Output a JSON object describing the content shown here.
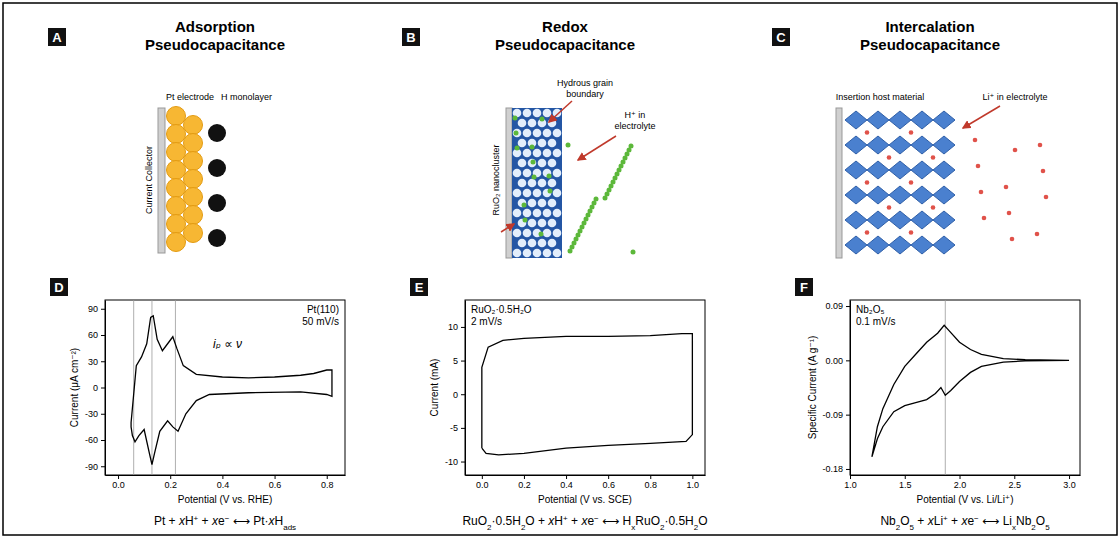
{
  "diagrams": [
    {
      "panel": "A",
      "title": "Adsorption Pseudocapacitance",
      "labels": {
        "collector": "Current Collector",
        "electrode": "Pt electrode",
        "adsorbate": "H monolayer"
      }
    },
    {
      "panel": "B",
      "title": "Redox Pseudocapacitance",
      "labels": {
        "cluster": "RuO₂ nanocluster",
        "boundary": "Hydrous grain boundary",
        "ion": "H⁺ in electrolyte"
      }
    },
    {
      "panel": "C",
      "title": "Intercalation Pseudocapacitance",
      "labels": {
        "host": "Insertion host material",
        "ion": "Li⁺ in electrolyte"
      }
    }
  ],
  "chart_data": [
    {
      "panel": "D",
      "type": "line",
      "color": "#000000",
      "annotations": [
        "Pt(110)",
        "50 mV/s"
      ],
      "formula": "iₚ ∝ ν",
      "xlabel": "Potential (V vs. RHE)",
      "ylabel": "Current (μA cm⁻²)",
      "x": [
        0.05,
        0.07,
        0.09,
        0.11,
        0.125,
        0.135,
        0.15,
        0.17,
        0.19,
        0.21,
        0.225,
        0.25,
        0.3,
        0.4,
        0.5,
        0.6,
        0.7,
        0.75,
        0.8,
        0.82,
        0.82,
        0.8,
        0.7,
        0.5,
        0.35,
        0.3,
        0.26,
        0.23,
        0.21,
        0.19,
        0.16,
        0.14,
        0.13,
        0.12,
        0.1,
        0.08,
        0.065,
        0.055,
        0.05,
        0.05
      ],
      "values": [
        -40,
        25,
        35,
        50,
        80,
        82,
        55,
        42,
        50,
        58,
        45,
        25,
        15,
        12,
        11,
        12,
        14,
        16,
        20,
        20,
        -10,
        -8,
        -5,
        -6,
        -8,
        -15,
        -30,
        -50,
        -45,
        -38,
        -50,
        -75,
        -88,
        -75,
        -48,
        -55,
        -62,
        -55,
        -45,
        -40
      ],
      "vlines": [
        0.06,
        0.13,
        0.22
      ],
      "xlim": [
        -0.05,
        0.87
      ],
      "ylim": [
        -100,
        100
      ],
      "xticks": [
        {
          "value": 0,
          "label": "0.0"
        },
        0.2,
        0.4,
        0.6,
        0.8
      ],
      "yticks": [
        -90,
        -60,
        -30,
        0,
        30,
        60,
        90
      ],
      "equation": [
        {
          "t": "Pt + "
        },
        {
          "i": "x"
        },
        {
          "t": "H"
        },
        {
          "sup": "+"
        },
        {
          "t": " + "
        },
        {
          "i": "x"
        },
        {
          "t": "e"
        },
        {
          "sup": "−"
        },
        {
          "t": " ⟷ Pt·"
        },
        {
          "i": "x"
        },
        {
          "t": "H"
        },
        {
          "sub": "ads"
        }
      ]
    },
    {
      "panel": "E",
      "type": "line",
      "color": "#000000",
      "annotations": [
        "RuO₂·0.5H₂O",
        "2 mV/s"
      ],
      "xlabel": "Potential (V vs. SCE)",
      "ylabel": "Current (mA)",
      "x": [
        0.0,
        0.0,
        0.03,
        0.1,
        0.2,
        0.4,
        0.6,
        0.8,
        0.95,
        1.0,
        1.0,
        0.97,
        0.8,
        0.6,
        0.4,
        0.2,
        0.08,
        0.02,
        0.0
      ],
      "values": [
        -8,
        4,
        7,
        8,
        8.3,
        8.6,
        8.6,
        8.7,
        9,
        9,
        -6,
        -7,
        -7.3,
        -7.6,
        -8,
        -8.8,
        -9,
        -8.8,
        -8
      ],
      "xlim": [
        -0.08,
        1.06
      ],
      "ylim": [
        -12,
        14
      ],
      "xticks": [
        {
          "value": 0,
          "label": "0.0"
        },
        0.2,
        0.4,
        0.6,
        0.8,
        {
          "value": 1,
          "label": "1.0"
        }
      ],
      "yticks": [
        -10,
        -5,
        0,
        5,
        10
      ],
      "equation": [
        {
          "t": "RuO"
        },
        {
          "sub": "2"
        },
        {
          "t": "·0.5H"
        },
        {
          "sub": "2"
        },
        {
          "t": "O + "
        },
        {
          "i": "x"
        },
        {
          "t": "H"
        },
        {
          "sup": "+"
        },
        {
          "t": " + "
        },
        {
          "i": "x"
        },
        {
          "t": "e"
        },
        {
          "sup": "−"
        },
        {
          "t": " ⟷ H"
        },
        {
          "sub": "x"
        },
        {
          "t": "RuO"
        },
        {
          "sub": "2"
        },
        {
          "t": "·0.5H"
        },
        {
          "sub": "2"
        },
        {
          "t": "O"
        }
      ]
    },
    {
      "panel": "F",
      "type": "line",
      "color": "#000000",
      "annotations": [
        "Nb₂O₅",
        "0.1 mV/s"
      ],
      "xlabel": "Potential (V vs. Li/Li⁺)",
      "ylabel": "Specific Current (A g⁻¹)",
      "x": [
        1.2,
        1.25,
        1.3,
        1.4,
        1.5,
        1.6,
        1.7,
        1.8,
        1.86,
        1.9,
        2.0,
        2.1,
        2.2,
        2.4,
        2.6,
        3.0,
        3.0,
        2.6,
        2.4,
        2.2,
        2.1,
        2.0,
        1.92,
        1.87,
        1.83,
        1.78,
        1.7,
        1.6,
        1.5,
        1.4,
        1.3,
        1.25,
        1.2
      ],
      "values": [
        -0.16,
        -0.11,
        -0.08,
        -0.04,
        -0.01,
        0.01,
        0.03,
        0.045,
        0.058,
        0.05,
        0.03,
        0.018,
        0.01,
        0.003,
        0.001,
        0.0,
        0.0,
        -0.001,
        -0.003,
        -0.01,
        -0.02,
        -0.035,
        -0.05,
        -0.058,
        -0.045,
        -0.055,
        -0.065,
        -0.07,
        -0.075,
        -0.085,
        -0.11,
        -0.13,
        -0.16
      ],
      "vlines": [
        1.87
      ],
      "xlim": [
        1.0,
        3.1
      ],
      "ylim": [
        -0.19,
        0.1
      ],
      "xticks": [
        {
          "value": 1,
          "label": "1.0"
        },
        1.5,
        {
          "value": 2,
          "label": "2.0"
        },
        2.5,
        {
          "value": 3,
          "label": "3.0"
        }
      ],
      "yticks": [
        0.09,
        {
          "value": 0,
          "label": "0.00"
        },
        -0.09,
        -0.18
      ],
      "equation": [
        {
          "t": "Nb"
        },
        {
          "sub": "2"
        },
        {
          "t": "O"
        },
        {
          "sub": "5"
        },
        {
          "t": " + "
        },
        {
          "i": "x"
        },
        {
          "t": "Li"
        },
        {
          "sup": "+"
        },
        {
          "t": " + "
        },
        {
          "i": "x"
        },
        {
          "t": "e"
        },
        {
          "sup": "−"
        },
        {
          "t": " ⟷ Li"
        },
        {
          "sub": "x"
        },
        {
          "t": "Nb"
        },
        {
          "sub": "2"
        },
        {
          "t": "O"
        },
        {
          "sub": "5"
        }
      ]
    }
  ]
}
